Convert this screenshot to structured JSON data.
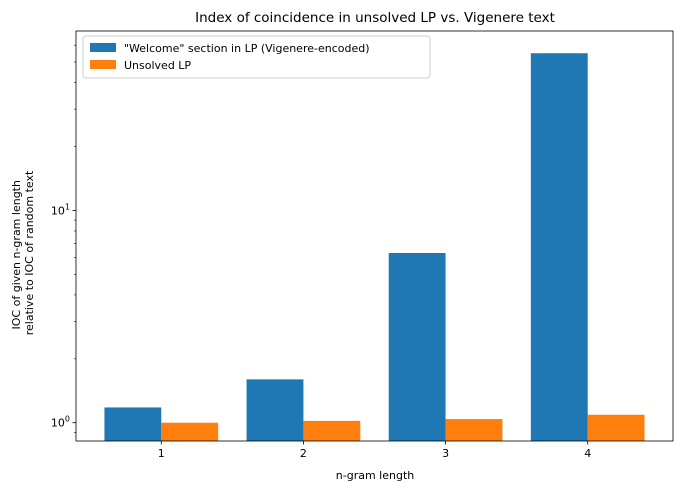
{
  "chart_data": {
    "type": "bar",
    "title": "Index of coincidence in unsolved LP vs. Vigenere text",
    "xlabel": "n-gram length",
    "ylabel": [
      "IOC of given n-gram length",
      "relative to IOC of random text"
    ],
    "categories": [
      "1",
      "2",
      "3",
      "4"
    ],
    "y_scale": "log",
    "ylim": [
      0.82,
      70
    ],
    "y_ticks": [
      {
        "value": 1,
        "base": "10",
        "exp": "0"
      },
      {
        "value": 10,
        "base": "10",
        "exp": "1"
      }
    ],
    "grid": false,
    "legend_position": "top-left",
    "series": [
      {
        "name": "\"Welcome\" section in LP (Vigenere-encoded)",
        "color": "#1f77b4",
        "values": [
          1.18,
          1.6,
          6.3,
          55
        ]
      },
      {
        "name": "Unsolved LP",
        "color": "#ff7f0e",
        "values": [
          1.0,
          1.02,
          1.04,
          1.09
        ]
      }
    ]
  }
}
